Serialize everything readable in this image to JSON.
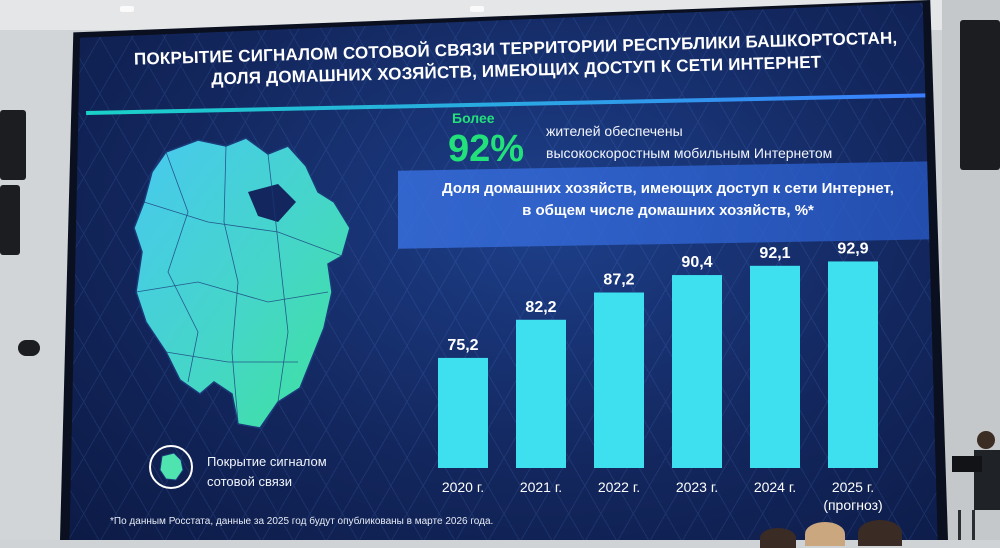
{
  "slide": {
    "title_line1": "ПОКРЫТИЕ СИГНАЛОМ СОТОВОЙ СВЯЗИ ТЕРРИТОРИИ РЕСПУБЛИКИ БАШКОРТОСТАН,",
    "title_line2": "ДОЛЯ ДОМАШНИХ ХОЗЯЙСТВ, ИМЕЮЩИХ ДОСТУП К СЕТИ ИНТЕРНЕТ",
    "highlight": {
      "prefix": "Более",
      "value": "92%",
      "text_line1": "жителей обеспечены",
      "text_line2": "высокоскоростным мобильным Интернетом",
      "color": "#22e07a"
    },
    "legend": {
      "line1": "Покрытие сигналом",
      "line2": "сотовой связи"
    },
    "footnote": "*По данным Росстата, данные за 2025 год будут опубликованы в марте 2026 года.",
    "colors": {
      "bar": "#3ee0f0",
      "background": "#13275e",
      "map_coverage": "#4fe3b0"
    }
  },
  "chart_data": {
    "type": "bar",
    "title_line1": "Доля домашних хозяйств, имеющих доступ к сети Интернет,",
    "title_line2": "в общем числе домашних хозяйств, %*",
    "categories": [
      "2020 г.",
      "2021 г.",
      "2022 г.",
      "2023 г.",
      "2024 г.",
      "2025 г. (прогноз)"
    ],
    "values": [
      75.2,
      82.2,
      87.2,
      90.4,
      92.1,
      92.9
    ],
    "value_labels": [
      "75,2",
      "82,2",
      "87,2",
      "90,4",
      "92,1",
      "92,9"
    ],
    "ylim": [
      55,
      95
    ],
    "grid": false,
    "legend": "none"
  }
}
